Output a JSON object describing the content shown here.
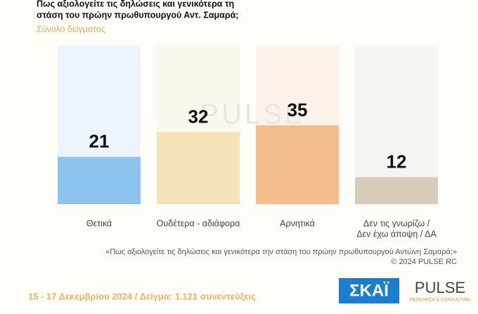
{
  "chart_data": {
    "type": "bar",
    "title": [
      "Πως αξιολογείτε τις δηλώσεις και γενικότερα τη",
      "στάση του πρώην πρωθυπουργού Αντ. Σαμαρά;"
    ],
    "subtitle": "Σύνολο δείγματος",
    "categories": [
      [
        "Θετικά"
      ],
      [
        "Ουδέτερα - αδιάφορα"
      ],
      [
        "Αρνητικά"
      ],
      [
        "Δεν τις γνωρίζω /",
        "Δεν έχω άποψη / ΔΑ"
      ]
    ],
    "values": [
      21,
      32,
      35,
      12
    ],
    "colors": [
      "#8ec2ef",
      "#f6e2b8",
      "#f4bd8c",
      "#d7cbb9"
    ],
    "column_colors": [
      "#eef4fc",
      "#fcf8ee",
      "#fdf3ea",
      "#f7f5f2"
    ],
    "watermark": "PULSE",
    "note": "«Πως αξιολογείτε τις δηλώσεις και γενικότερα την στάση του πρώην πρωθυπουργού Αντώνη Σαμαρά;»",
    "copyright": "©  2024  PULSE RC",
    "footer": "15 - 17 Δεκεμβρίου 2024  /  Δείγμα:  1.121 συνεντεύξεις",
    "logo_left": "ΣΚΑΪ",
    "logo_right": "PULSE",
    "logo_right_sub": "RESEARCH & CONSULTING"
  }
}
